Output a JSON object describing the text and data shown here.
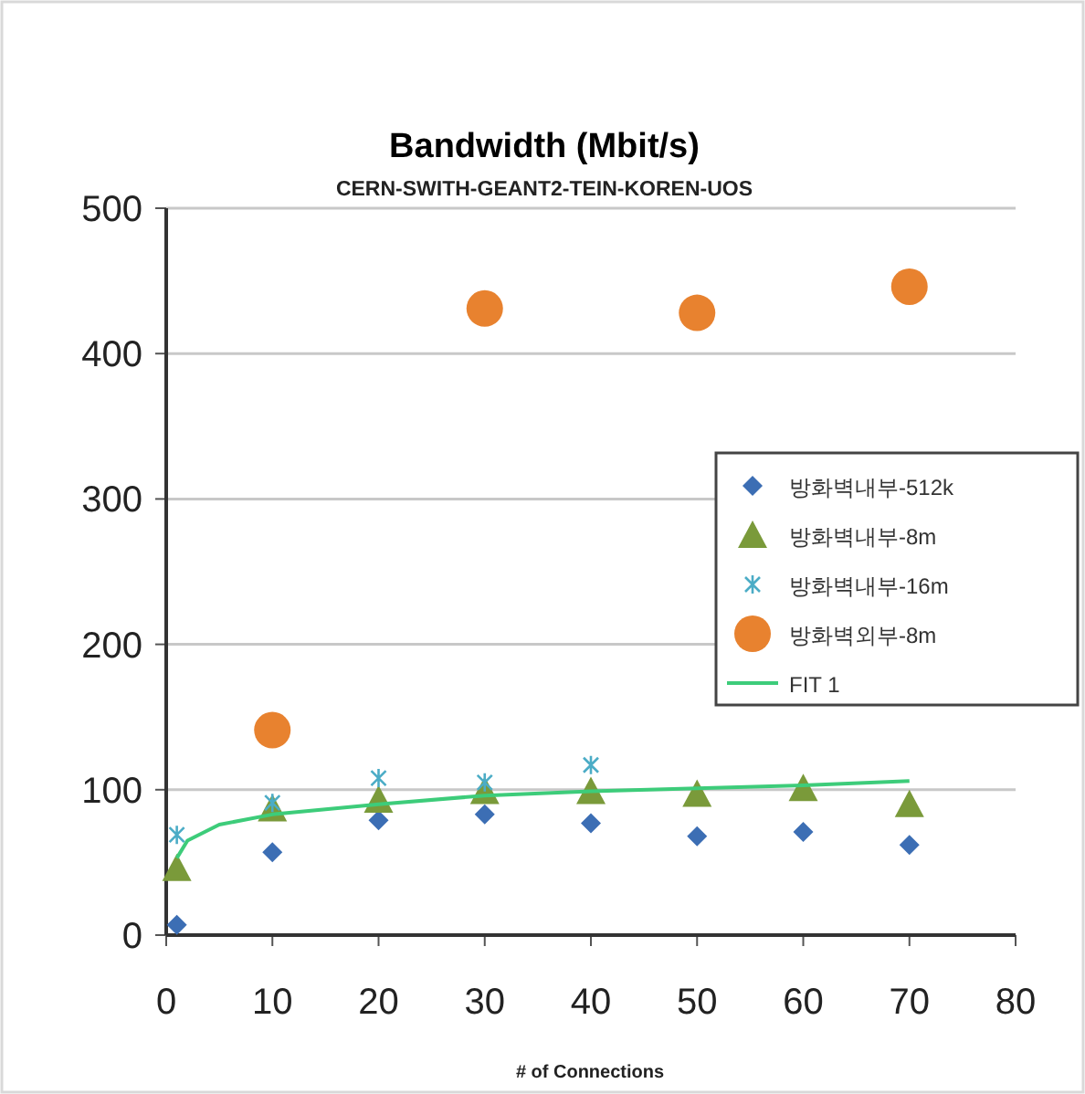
{
  "chart_data": {
    "type": "scatter",
    "title": "Bandwidth (Mbit/s)",
    "subtitle": "CERN-SWITH-GEANT2-TEIN-KOREN-UOS",
    "xlabel": "# of Connections",
    "xlim": [
      0,
      80
    ],
    "xticks": [
      0,
      10,
      20,
      30,
      40,
      50,
      60,
      70,
      80
    ],
    "ylim": [
      0,
      500
    ],
    "yticks": [
      0,
      100,
      200,
      300,
      400,
      500
    ],
    "grid": "y",
    "legend": "right",
    "series": [
      {
        "name": "방화벽내부-512k",
        "color": "#3c6eb4",
        "marker": "diamond",
        "x": [
          1,
          10,
          20,
          30,
          40,
          50,
          60,
          70
        ],
        "values": [
          7,
          57,
          79,
          83,
          77,
          68,
          71,
          62
        ]
      },
      {
        "name": "방화벽내부-8m",
        "color": "#7a9a3a",
        "marker": "triangle",
        "x": [
          1,
          10,
          20,
          30,
          40,
          50,
          60,
          70
        ],
        "values": [
          46,
          87,
          93,
          99,
          99,
          97,
          101,
          90
        ]
      },
      {
        "name": "방화벽내부-16m",
        "color": "#4bacc6",
        "marker": "cross",
        "x": [
          1,
          10,
          20,
          30,
          40
        ],
        "values": [
          69,
          91,
          108,
          105,
          117
        ]
      },
      {
        "name": "방화벽외부-8m",
        "color": "#e8822f",
        "marker": "circle",
        "x": [
          10,
          30,
          50,
          70
        ],
        "values": [
          141,
          431,
          428,
          446
        ]
      },
      {
        "name": "FIT 1",
        "type": "line",
        "color": "#3dcc7a",
        "marker": "none",
        "x": [
          1,
          2,
          5,
          10,
          20,
          30,
          40,
          50,
          60,
          70
        ],
        "values": [
          53,
          65,
          76,
          83,
          90,
          96,
          99,
          101,
          103,
          106
        ]
      }
    ]
  }
}
